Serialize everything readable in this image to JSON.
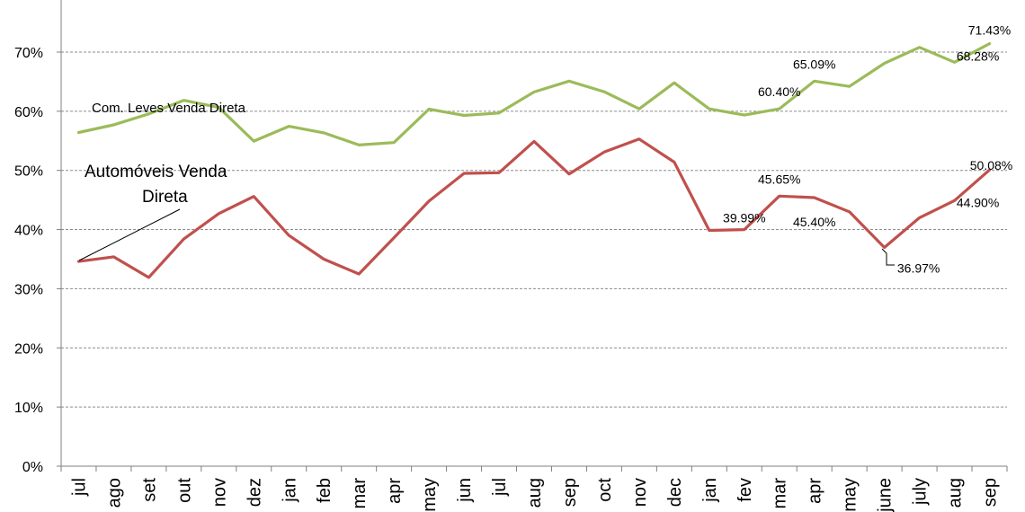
{
  "chart_data": {
    "type": "line",
    "categories": [
      "jul",
      "ago",
      "set",
      "out",
      "nov",
      "dez",
      "jan",
      "feb",
      "mar",
      "apr",
      "may",
      "jun",
      "jul",
      "aug",
      "sep",
      "oct",
      "nov",
      "dec",
      "jan",
      "fev",
      "mar",
      "apr",
      "may",
      "june",
      "july",
      "aug",
      "sep"
    ],
    "ylim": [
      0,
      0.8
    ],
    "yticks": [
      "0%",
      "10%",
      "20%",
      "30%",
      "40%",
      "50%",
      "60%",
      "70%"
    ],
    "grid": true,
    "series": [
      {
        "name": "Com. Leves Venda Direta",
        "color": "#9bbb59",
        "values": [
          0.564,
          0.577,
          0.5955,
          0.6185,
          0.6065,
          0.5495,
          0.5745,
          0.5635,
          0.543,
          0.547,
          0.6035,
          0.593,
          0.597,
          0.6325,
          0.651,
          0.633,
          0.604,
          0.648,
          0.604,
          0.5935,
          0.604,
          0.6509,
          0.642,
          0.681,
          0.708,
          0.6828,
          0.7143
        ]
      },
      {
        "name": "Automóveis Venda Direta",
        "color": "#c0504d",
        "values": [
          0.346,
          0.354,
          0.319,
          0.384,
          0.427,
          0.456,
          0.39,
          0.35,
          0.325,
          0.386,
          0.448,
          0.495,
          0.496,
          0.549,
          0.494,
          0.531,
          0.553,
          0.514,
          0.3985,
          0.3999,
          0.4565,
          0.454,
          0.43,
          0.3697,
          0.42,
          0.449,
          0.5008
        ]
      }
    ],
    "data_labels": [
      {
        "series": 0,
        "index": 20,
        "text": "60.40%"
      },
      {
        "series": 0,
        "index": 21,
        "text": "65.09%"
      },
      {
        "series": 0,
        "index": 25,
        "text": "68.28%"
      },
      {
        "series": 0,
        "index": 26,
        "text": "71.43%"
      },
      {
        "series": 1,
        "index": 19,
        "text": "39.99%"
      },
      {
        "series": 1,
        "index": 20,
        "text": "45.65%"
      },
      {
        "series": 1,
        "index": 21,
        "text": "45.40%"
      },
      {
        "series": 1,
        "index": 23,
        "text": "36.97%"
      },
      {
        "series": 1,
        "index": 25,
        "text": "44.90%"
      },
      {
        "series": 1,
        "index": 26,
        "text": "50.08%"
      }
    ],
    "series_labels": {
      "green": "Com. Leves Venda Direta",
      "red_line1": "Automóveis Venda",
      "red_line2": "Direta"
    }
  }
}
